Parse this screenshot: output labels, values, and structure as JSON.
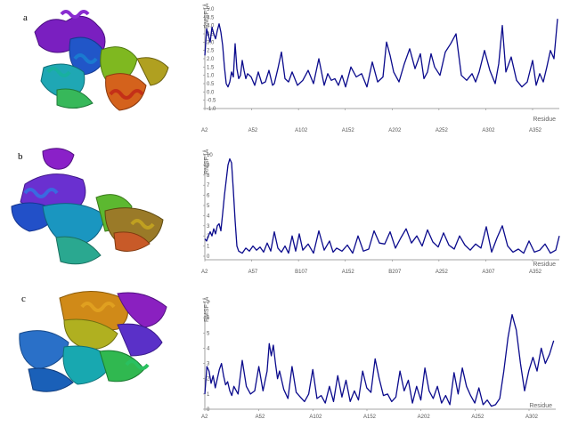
{
  "panels": [
    {
      "label": "a",
      "ylabel": "RMSF [Å]",
      "xlabel": "Residue",
      "y_ticks": [
        "5.0",
        "4.5",
        "4.0",
        "3.5",
        "3.0",
        "2.5",
        "2.0",
        "1.5",
        "1.0",
        "0.5",
        "0.0",
        "-0.5",
        "-1.0"
      ],
      "x_ticks": [
        "A2",
        "A52",
        "A102",
        "A152",
        "A202",
        "A252",
        "A302",
        "A352"
      ]
    },
    {
      "label": "b",
      "ylabel": "RMSF [Å]",
      "xlabel": "Residue",
      "y_ticks": [
        "10",
        "9",
        "8",
        "7",
        "6",
        "5",
        "4",
        "3",
        "2",
        "1",
        "0"
      ],
      "x_ticks": [
        "A2",
        "A57",
        "B107",
        "A152",
        "B207",
        "A252",
        "A307",
        "A352"
      ]
    },
    {
      "label": "c",
      "ylabel": "RMSF [Å]",
      "xlabel": "Residue",
      "y_ticks": [
        "7",
        "6",
        "5",
        "4",
        "3",
        "2",
        "1",
        "0"
      ],
      "x_ticks": [
        "A2",
        "A52",
        "A102",
        "A152",
        "A202",
        "A252",
        "A302"
      ]
    }
  ],
  "chart_data": [
    {
      "type": "line",
      "title": "",
      "xlabel": "Residue",
      "ylabel": "RMSF [Å]",
      "ylim": [
        -1.0,
        5.0
      ],
      "xlim": [
        2,
        400
      ],
      "series": [
        {
          "x": [
            2,
            4,
            6,
            8,
            10,
            12,
            14,
            16,
            18,
            20,
            22,
            24,
            26,
            28,
            30,
            32,
            34,
            36,
            38,
            40,
            42,
            44,
            46,
            48,
            50,
            54,
            58,
            62,
            66,
            70,
            74,
            78,
            80,
            84,
            88,
            92,
            96,
            100,
            106,
            112,
            118,
            124,
            130,
            136,
            140,
            144,
            148,
            152,
            156,
            160,
            166,
            172,
            178,
            184,
            190,
            196,
            202,
            206,
            210,
            214,
            220,
            226,
            232,
            238,
            244,
            248,
            252,
            256,
            260,
            266,
            272,
            278,
            284,
            290,
            296,
            302,
            306,
            310,
            316,
            322,
            328,
            332,
            336,
            340,
            346,
            352,
            358,
            364,
            370,
            374,
            378,
            382,
            386,
            390,
            394,
            398
          ],
          "y": [
            2.2,
            3.8,
            3.4,
            3.0,
            3.9,
            3.5,
            3.2,
            3.7,
            4.1,
            3.6,
            2.8,
            1.5,
            0.5,
            0.3,
            0.6,
            1.2,
            0.9,
            2.9,
            1.4,
            0.8,
            1.0,
            1.9,
            1.3,
            0.8,
            1.1,
            0.9,
            0.4,
            1.2,
            0.5,
            0.6,
            1.3,
            0.4,
            0.5,
            1.4,
            2.4,
            0.8,
            0.6,
            1.2,
            0.4,
            0.7,
            1.3,
            0.5,
            2.0,
            0.4,
            1.1,
            0.7,
            0.8,
            0.4,
            1.0,
            0.3,
            1.5,
            0.9,
            1.1,
            0.3,
            1.8,
            0.6,
            0.9,
            3.0,
            2.2,
            1.2,
            0.6,
            1.7,
            2.6,
            1.4,
            2.3,
            0.8,
            1.2,
            2.3,
            1.5,
            1.0,
            2.4,
            2.9,
            3.5,
            1.0,
            0.7,
            1.1,
            0.6,
            1.2,
            2.5,
            1.3,
            0.5,
            1.7,
            4.0,
            1.2,
            2.1,
            0.7,
            0.3,
            0.6,
            1.9,
            0.4,
            1.1,
            0.6,
            1.5,
            2.5,
            2.0,
            4.4
          ]
        }
      ]
    },
    {
      "type": "line",
      "title": "",
      "xlabel": "Residue",
      "ylabel": "RMSF [Å]",
      "ylim": [
        0,
        10
      ],
      "xlim": [
        2,
        400
      ],
      "series": [
        {
          "x": [
            2,
            4,
            6,
            8,
            10,
            12,
            14,
            16,
            18,
            20,
            22,
            24,
            26,
            28,
            30,
            32,
            34,
            36,
            38,
            40,
            44,
            48,
            52,
            56,
            60,
            64,
            68,
            72,
            76,
            80,
            84,
            88,
            92,
            96,
            100,
            104,
            108,
            112,
            118,
            124,
            130,
            136,
            142,
            146,
            150,
            156,
            162,
            168,
            174,
            180,
            186,
            192,
            198,
            204,
            210,
            216,
            222,
            228,
            234,
            240,
            246,
            252,
            258,
            264,
            270,
            276,
            282,
            288,
            294,
            300,
            306,
            312,
            318,
            324,
            330,
            336,
            342,
            348,
            354,
            360,
            366,
            372,
            378,
            384,
            390,
            396,
            400
          ],
          "y": [
            1.7,
            1.5,
            2.0,
            2.4,
            2.0,
            2.7,
            2.2,
            3.0,
            3.2,
            2.5,
            4.2,
            6.0,
            7.5,
            9.0,
            9.6,
            9.2,
            6.5,
            3.5,
            1.0,
            0.5,
            0.3,
            0.8,
            0.5,
            1.0,
            0.6,
            0.9,
            0.4,
            1.3,
            0.5,
            2.4,
            0.8,
            0.4,
            1.0,
            0.3,
            2.0,
            0.5,
            2.2,
            0.6,
            1.2,
            0.3,
            2.5,
            0.6,
            1.5,
            0.4,
            0.8,
            0.5,
            1.1,
            0.3,
            2.0,
            0.5,
            0.7,
            2.5,
            1.3,
            1.2,
            2.4,
            0.8,
            1.8,
            2.7,
            1.3,
            2.0,
            1.0,
            2.6,
            1.4,
            0.9,
            2.3,
            1.1,
            0.7,
            2.0,
            1.1,
            0.6,
            1.2,
            0.8,
            2.9,
            0.4,
            1.8,
            3.0,
            1.0,
            0.4,
            0.7,
            0.3,
            1.5,
            0.4,
            0.6,
            1.2,
            0.3,
            0.6,
            2.0
          ]
        }
      ]
    },
    {
      "type": "line",
      "title": "",
      "xlabel": "Residue",
      "ylabel": "RMSF [Å]",
      "ylim": [
        0,
        7
      ],
      "xlim": [
        2,
        340
      ],
      "series": [
        {
          "x": [
            2,
            4,
            6,
            8,
            10,
            12,
            14,
            16,
            18,
            20,
            22,
            24,
            26,
            28,
            30,
            34,
            38,
            42,
            46,
            50,
            54,
            58,
            62,
            64,
            66,
            68,
            70,
            72,
            74,
            78,
            82,
            86,
            90,
            94,
            98,
            102,
            106,
            110,
            114,
            118,
            122,
            126,
            130,
            134,
            138,
            142,
            146,
            150,
            154,
            158,
            162,
            166,
            170,
            174,
            178,
            182,
            186,
            190,
            194,
            198,
            202,
            206,
            210,
            214,
            218,
            222,
            226,
            230,
            234,
            238,
            242,
            246,
            250,
            254,
            258,
            262,
            266,
            270,
            274,
            278,
            282,
            286,
            290,
            294,
            298,
            302,
            306,
            310,
            314,
            318,
            322,
            326,
            330,
            334,
            338
          ],
          "y": [
            1.0,
            2.8,
            2.5,
            1.7,
            2.2,
            1.4,
            2.0,
            2.6,
            3.0,
            2.2,
            1.6,
            1.8,
            1.2,
            0.9,
            1.5,
            1.0,
            3.2,
            1.5,
            1.0,
            1.2,
            2.8,
            1.2,
            2.5,
            4.3,
            3.5,
            4.2,
            3.0,
            2.0,
            2.5,
            1.3,
            0.7,
            2.8,
            1.1,
            0.8,
            0.5,
            1.0,
            2.6,
            0.7,
            0.9,
            0.4,
            1.5,
            0.5,
            2.2,
            0.8,
            1.9,
            0.5,
            1.2,
            0.6,
            2.5,
            1.4,
            1.1,
            3.3,
            2.0,
            0.9,
            1.0,
            0.5,
            0.8,
            2.5,
            1.2,
            1.9,
            0.4,
            1.5,
            0.6,
            2.7,
            1.2,
            0.7,
            1.5,
            0.4,
            0.9,
            0.3,
            2.4,
            1.0,
            2.7,
            1.5,
            0.9,
            0.4,
            1.4,
            0.3,
            0.6,
            0.2,
            0.3,
            0.7,
            2.5,
            4.7,
            6.2,
            5.2,
            3.0,
            1.2,
            2.5,
            3.4,
            2.5,
            4.0,
            3.0,
            3.6,
            4.5
          ]
        }
      ]
    }
  ]
}
